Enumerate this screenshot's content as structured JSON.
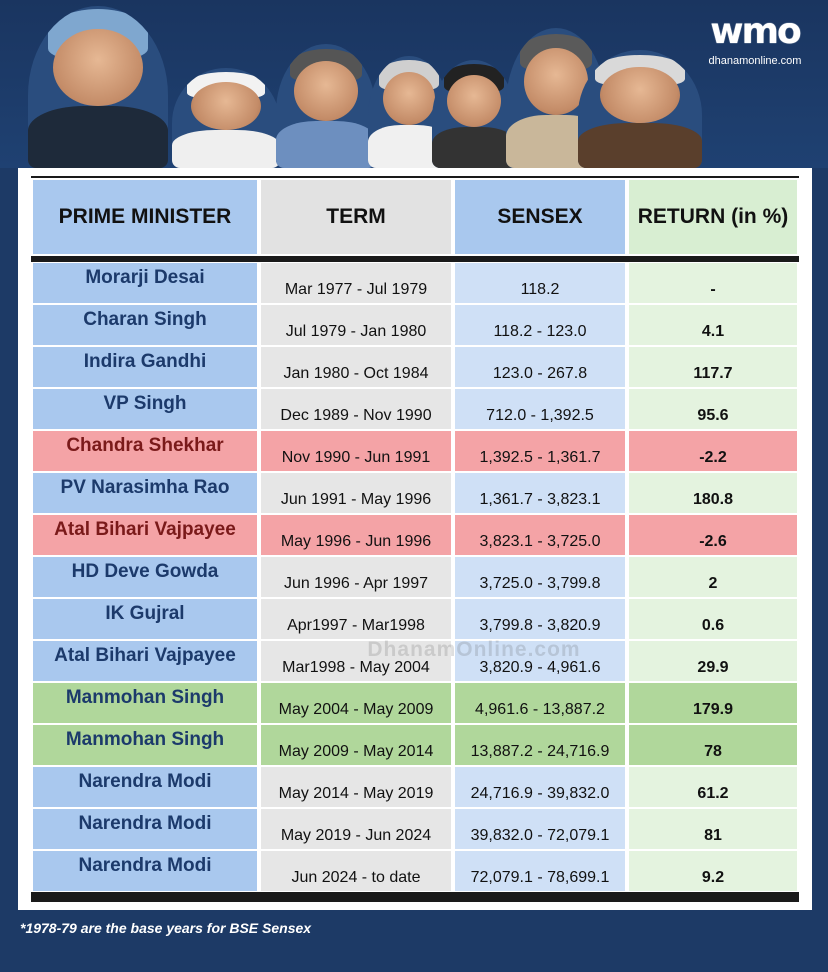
{
  "brand": {
    "logo_text": "wmo",
    "url": "dhanamonline.com",
    "watermark": "DhanamOnline.com"
  },
  "portraits": [
    {
      "name": "portrait-1"
    },
    {
      "name": "portrait-2"
    },
    {
      "name": "portrait-3"
    },
    {
      "name": "portrait-4"
    },
    {
      "name": "portrait-5"
    },
    {
      "name": "portrait-6"
    },
    {
      "name": "portrait-7"
    }
  ],
  "table": {
    "headers": {
      "pm": "PRIME MINISTER",
      "term": "TERM",
      "sensex": "SENSEX",
      "return": "RETURN (in %)"
    },
    "rows": [
      {
        "pm": "Morarji Desai",
        "term": "Mar 1977 - Jul 1979",
        "sensex": "118.2",
        "ret": "-",
        "style": "normal"
      },
      {
        "pm": "Charan Singh",
        "term": "Jul 1979 - Jan 1980",
        "sensex": "118.2 - 123.0",
        "ret": "4.1",
        "style": "normal"
      },
      {
        "pm": "Indira Gandhi",
        "term": "Jan 1980 - Oct 1984",
        "sensex": "123.0 - 267.8",
        "ret": "117.7",
        "style": "normal"
      },
      {
        "pm": "VP Singh",
        "term": "Dec 1989 - Nov 1990",
        "sensex": "712.0 - 1,392.5",
        "ret": "95.6",
        "style": "normal"
      },
      {
        "pm": "Chandra Shekhar",
        "term": "Nov 1990 - Jun 1991",
        "sensex": "1,392.5 - 1,361.7",
        "ret": "-2.2",
        "style": "neg"
      },
      {
        "pm": "PV Narasimha Rao",
        "term": "Jun 1991 - May 1996",
        "sensex": "1,361.7 - 3,823.1",
        "ret": "180.8",
        "style": "normal"
      },
      {
        "pm": "Atal Bihari Vajpayee",
        "term": "May 1996 - Jun 1996",
        "sensex": "3,823.1 - 3,725.0",
        "ret": "-2.6",
        "style": "neg"
      },
      {
        "pm": "HD Deve Gowda",
        "term": "Jun 1996 - Apr 1997",
        "sensex": "3,725.0 - 3,799.8",
        "ret": "2",
        "style": "normal"
      },
      {
        "pm": "IK Gujral",
        "term": "Apr1997 - Mar1998",
        "sensex": "3,799.8 - 3,820.9",
        "ret": "0.6",
        "style": "normal"
      },
      {
        "pm": "Atal Bihari Vajpayee",
        "term": "Mar1998 - May 2004",
        "sensex": "3,820.9 - 4,961.6",
        "ret": "29.9",
        "style": "normal"
      },
      {
        "pm": "Manmohan Singh",
        "term": "May 2004 - May 2009",
        "sensex": "4,961.6 - 13,887.2",
        "ret": "179.9",
        "style": "pos"
      },
      {
        "pm": "Manmohan Singh",
        "term": "May 2009 - May 2014",
        "sensex": "13,887.2 - 24,716.9",
        "ret": "78",
        "style": "pos"
      },
      {
        "pm": "Narendra Modi",
        "term": "May 2014 - May 2019",
        "sensex": "24,716.9 - 39,832.0",
        "ret": "61.2",
        "style": "normal"
      },
      {
        "pm": "Narendra Modi",
        "term": "May 2019 - Jun 2024",
        "sensex": "39,832.0 - 72,079.1",
        "ret": "81",
        "style": "normal"
      },
      {
        "pm": "Narendra Modi",
        "term": "Jun 2024 - to date",
        "sensex": "72,079.1 - 78,699.1",
        "ret": "9.2",
        "style": "normal"
      }
    ]
  },
  "footnote": "*1978-79 are the base years for BSE Sensex",
  "colors": {
    "background": "#1d3a66",
    "pm_cell": "#a9c8ee",
    "negative_row": "#f4a3a6",
    "positive_row": "#b0d79b"
  }
}
